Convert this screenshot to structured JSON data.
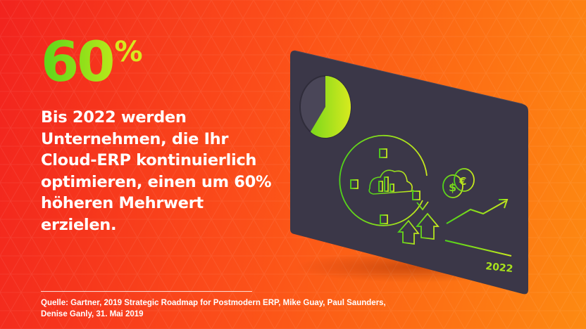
{
  "stat": {
    "value": "60",
    "unit": "%"
  },
  "headline": "Bis 2022 werden Unternehmen, die Ihr Cloud-ERP kontinuierlich optimieren, einen um 60% höheren Mehrwert erzielen.",
  "source": "Quelle: Gartner, 2019 Strategic Roadmap for Postmodern ERP, Mike Guay, Paul Saunders, Denise Ganly, 31. Mai 2019",
  "card": {
    "year_label": "2022",
    "pie_fraction": 0.6
  },
  "icons": [
    "pie-chart-icon",
    "cloud-bar-chart-icon",
    "dollar-coin-icon",
    "euro-coin-icon",
    "up-arrows-icon",
    "trend-arrow-icon"
  ],
  "colors": {
    "background_start": "#f2231e",
    "background_end": "#fd8a12",
    "accent_green": "#5ad51a",
    "accent_lime": "#d8e81e",
    "card": "#3b3748",
    "text": "#ffffff"
  }
}
